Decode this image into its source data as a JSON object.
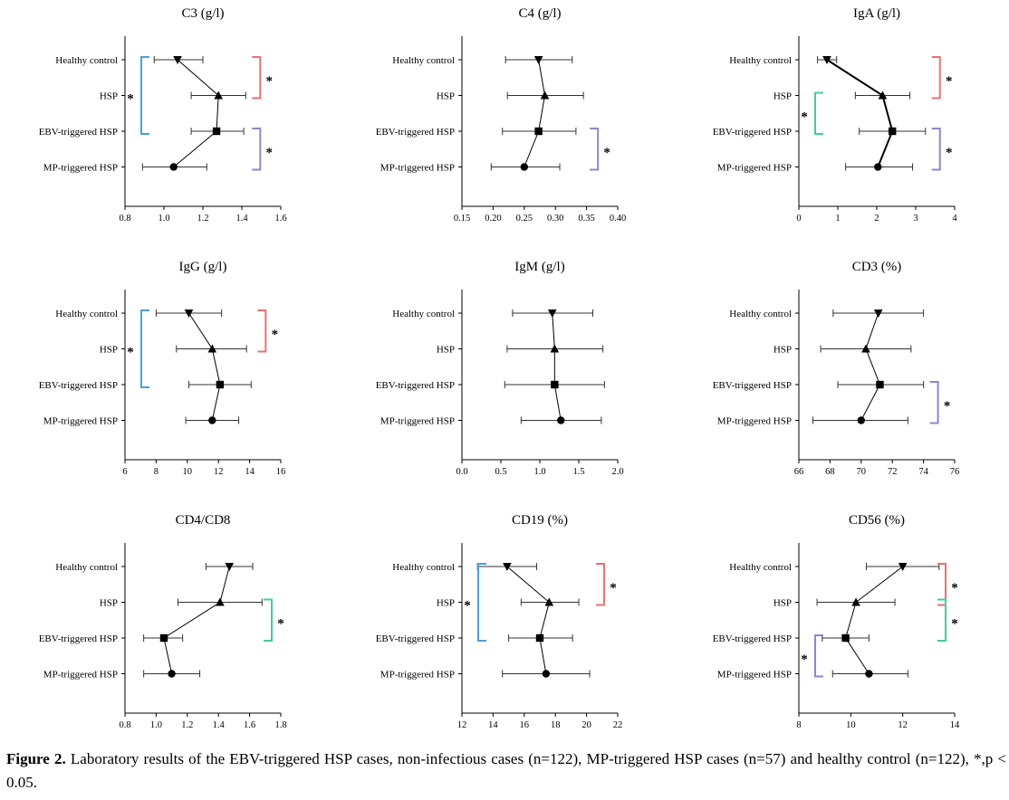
{
  "caption": {
    "figure_label": "Figure 2.",
    "text": " Laboratory results of the EBV-triggered HSP cases, non-infectious cases (n=122), MP-triggered HSP cases (n=57) and healthy control (n=122), *,p < 0.05."
  },
  "colors": {
    "red": "#e57373",
    "blue": "#4a9fd4",
    "teal": "#3fcf9a",
    "purple": "#8a88cc",
    "ink": "#000000",
    "errorbar": "#333333"
  },
  "chart_data": [
    {
      "type": "scatter",
      "title": "C3 (g/l)",
      "categories": [
        "Healthy control",
        "HSP",
        "EBV-triggered HSP",
        "MP-triggered HSP"
      ],
      "markers": [
        "triangle-down",
        "triangle-up",
        "square",
        "circle"
      ],
      "values": [
        1.07,
        1.28,
        1.27,
        1.05
      ],
      "lower": [
        0.95,
        1.14,
        1.14,
        0.89
      ],
      "upper": [
        1.2,
        1.42,
        1.41,
        1.22
      ],
      "xlim": [
        0.8,
        1.6
      ],
      "xticks": [
        "0.8",
        "1.0",
        "1.2",
        "1.4",
        "1.6"
      ],
      "line_width": 1,
      "brackets": [
        {
          "from": "Healthy control",
          "to": "HSP",
          "side": "right",
          "color": "red",
          "label": "*"
        },
        {
          "from": "Healthy control",
          "to": "EBV-triggered HSP",
          "side": "left",
          "color": "blue",
          "label": "*"
        },
        {
          "from": "EBV-triggered HSP",
          "to": "MP-triggered HSP",
          "side": "right",
          "color": "purple",
          "label": "*"
        }
      ]
    },
    {
      "type": "scatter",
      "title": "C4 (g/l)",
      "categories": [
        "Healthy control",
        "HSP",
        "EBV-triggered HSP",
        "MP-triggered HSP"
      ],
      "markers": [
        "triangle-down",
        "triangle-up",
        "square",
        "circle"
      ],
      "values": [
        0.273,
        0.283,
        0.273,
        0.25
      ],
      "lower": [
        0.22,
        0.223,
        0.215,
        0.197
      ],
      "upper": [
        0.327,
        0.345,
        0.333,
        0.307
      ],
      "xlim": [
        0.15,
        0.4
      ],
      "xticks": [
        "0.15",
        "0.20",
        "0.25",
        "0.30",
        "0.35",
        "0.40"
      ],
      "line_width": 1,
      "brackets": [
        {
          "from": "EBV-triggered HSP",
          "to": "MP-triggered HSP",
          "side": "right",
          "color": "purple",
          "label": "*"
        }
      ]
    },
    {
      "type": "scatter",
      "title": "IgA (g/l)",
      "categories": [
        "Healthy control",
        "HSP",
        "EBV-triggered HSP",
        "MP-triggered HSP"
      ],
      "markers": [
        "triangle-down",
        "triangle-up",
        "square",
        "circle"
      ],
      "values": [
        0.72,
        2.15,
        2.4,
        2.03
      ],
      "lower": [
        0.48,
        1.45,
        1.55,
        1.2
      ],
      "upper": [
        0.97,
        2.85,
        3.25,
        2.92
      ],
      "xlim": [
        0,
        4
      ],
      "xticks": [
        "0",
        "1",
        "2",
        "3",
        "4"
      ],
      "line_width": 2,
      "brackets": [
        {
          "from": "Healthy control",
          "to": "HSP",
          "side": "right",
          "color": "red",
          "label": "*"
        },
        {
          "from": "HSP",
          "to": "EBV-triggered HSP",
          "side": "left",
          "color": "teal",
          "label": "*"
        },
        {
          "from": "EBV-triggered HSP",
          "to": "MP-triggered HSP",
          "side": "right",
          "color": "purple",
          "label": "*"
        }
      ]
    },
    {
      "type": "scatter",
      "title": "IgG (g/l)",
      "categories": [
        "Healthy control",
        "HSP",
        "EBV-triggered HSP",
        "MP-triggered HSP"
      ],
      "markers": [
        "triangle-down",
        "triangle-up",
        "square",
        "circle"
      ],
      "values": [
        10.1,
        11.6,
        12.1,
        11.6
      ],
      "lower": [
        8.0,
        9.3,
        10.1,
        9.9
      ],
      "upper": [
        12.2,
        13.8,
        14.1,
        13.3
      ],
      "xlim": [
        6,
        16
      ],
      "xticks": [
        "6",
        "8",
        "10",
        "12",
        "14",
        "16"
      ],
      "line_width": 1,
      "brackets": [
        {
          "from": "Healthy control",
          "to": "HSP",
          "side": "right",
          "color": "red",
          "label": "*"
        },
        {
          "from": "Healthy control",
          "to": "EBV-triggered HSP",
          "side": "left",
          "color": "blue",
          "label": "*"
        }
      ]
    },
    {
      "type": "scatter",
      "title": "IgM (g/l)",
      "categories": [
        "Healthy control",
        "HSP",
        "EBV-triggered HSP",
        "MP-triggered HSP"
      ],
      "markers": [
        "triangle-down",
        "triangle-up",
        "square",
        "circle"
      ],
      "values": [
        1.16,
        1.19,
        1.19,
        1.27
      ],
      "lower": [
        0.65,
        0.58,
        0.55,
        0.76
      ],
      "upper": [
        1.68,
        1.81,
        1.83,
        1.79
      ],
      "xlim": [
        0,
        2
      ],
      "xticks": [
        "0.0",
        "0.5",
        "1.0",
        "1.5",
        "2.0"
      ],
      "line_width": 1,
      "brackets": []
    },
    {
      "type": "scatter",
      "title": "CD3 (%)",
      "categories": [
        "Healthy control",
        "HSP",
        "EBV-triggered HSP",
        "MP-triggered HSP"
      ],
      "markers": [
        "triangle-down",
        "triangle-up",
        "square",
        "circle"
      ],
      "values": [
        71.1,
        70.3,
        71.2,
        70.0
      ],
      "lower": [
        68.2,
        67.4,
        68.5,
        66.9
      ],
      "upper": [
        74.0,
        73.2,
        74.0,
        73.0
      ],
      "xlim": [
        66,
        76
      ],
      "xticks": [
        "66",
        "68",
        "70",
        "72",
        "74",
        "76"
      ],
      "line_width": 1,
      "brackets": [
        {
          "from": "EBV-triggered HSP",
          "to": "MP-triggered HSP",
          "side": "right",
          "color": "purple",
          "label": "*"
        }
      ]
    },
    {
      "type": "scatter",
      "title": "CD4/CD8",
      "categories": [
        "Healthy control",
        "HSP",
        "EBV-triggered HSP",
        "MP-triggered HSP"
      ],
      "markers": [
        "triangle-down",
        "triangle-up",
        "square",
        "circle"
      ],
      "values": [
        1.47,
        1.41,
        1.05,
        1.1
      ],
      "lower": [
        1.32,
        1.14,
        0.92,
        0.92
      ],
      "upper": [
        1.62,
        1.68,
        1.17,
        1.28
      ],
      "xlim": [
        0.8,
        1.8
      ],
      "xticks": [
        "0.8",
        "1.0",
        "1.2",
        "1.4",
        "1.6",
        "1.8"
      ],
      "line_width": 1,
      "brackets": [
        {
          "from": "HSP",
          "to": "EBV-triggered HSP",
          "side": "right",
          "color": "teal",
          "label": "*"
        }
      ]
    },
    {
      "type": "scatter",
      "title": "CD19 (%)",
      "categories": [
        "Healthy control",
        "HSP",
        "EBV-triggered HSP",
        "MP-triggered HSP"
      ],
      "markers": [
        "triangle-down",
        "triangle-up",
        "square",
        "circle"
      ],
      "values": [
        14.9,
        17.6,
        17.0,
        17.4
      ],
      "lower": [
        13.0,
        15.8,
        15.0,
        14.6
      ],
      "upper": [
        16.8,
        19.5,
        19.1,
        20.2
      ],
      "xlim": [
        12,
        22
      ],
      "xticks": [
        "12",
        "14",
        "16",
        "18",
        "20",
        "22"
      ],
      "line_width": 1,
      "brackets": [
        {
          "from": "Healthy control",
          "to": "HSP",
          "side": "right",
          "color": "red",
          "label": "*"
        },
        {
          "from": "Healthy control",
          "to": "EBV-triggered HSP",
          "side": "left",
          "color": "blue",
          "label": "*"
        }
      ]
    },
    {
      "type": "scatter",
      "title": "CD56 (%)",
      "categories": [
        "Healthy control",
        "HSP",
        "EBV-triggered HSP",
        "MP-triggered HSP"
      ],
      "markers": [
        "triangle-down",
        "triangle-up",
        "square",
        "circle"
      ],
      "values": [
        12.0,
        10.2,
        9.8,
        10.7
      ],
      "lower": [
        10.6,
        8.7,
        8.9,
        9.3
      ],
      "upper": [
        13.4,
        11.7,
        10.7,
        12.2
      ],
      "xlim": [
        8,
        14
      ],
      "xticks": [
        "8",
        "10",
        "12",
        "14"
      ],
      "line_width": 1,
      "brackets": [
        {
          "from": "Healthy control",
          "to": "HSP",
          "side": "right",
          "color": "red",
          "label": "*"
        },
        {
          "from": "HSP",
          "to": "EBV-triggered HSP",
          "side": "right",
          "color": "teal",
          "label": "*"
        },
        {
          "from": "EBV-triggered HSP",
          "to": "MP-triggered HSP",
          "side": "left",
          "color": "purple",
          "label": "*"
        }
      ]
    }
  ]
}
